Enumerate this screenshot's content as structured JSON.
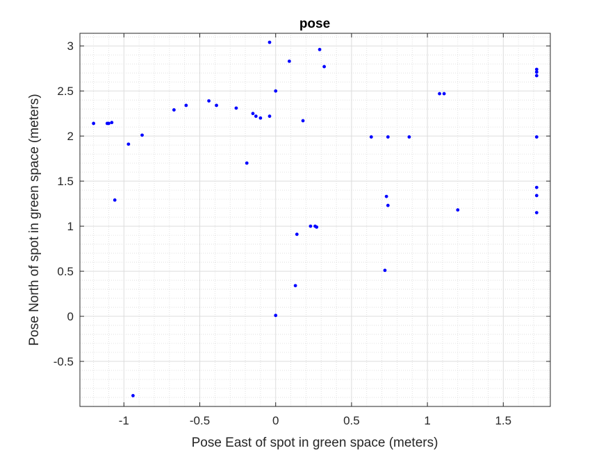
{
  "chart_data": {
    "type": "scatter",
    "title": "pose",
    "xlabel": "Pose East of spot in green space (meters)",
    "ylabel": "Pose North of spot in green space (meters)",
    "xlim": [
      -1.29,
      1.81
    ],
    "ylim": [
      -1.0,
      3.14
    ],
    "xticks": [
      -1,
      -0.5,
      0,
      0.5,
      1,
      1.5
    ],
    "xtick_labels": [
      "-1",
      "-0.5",
      "0",
      "0.5",
      "1",
      "1.5"
    ],
    "yticks": [
      -0.5,
      0,
      0.5,
      1,
      1.5,
      2,
      2.5,
      3
    ],
    "ytick_labels": [
      "-0.5",
      "0",
      "0.5",
      "1",
      "1.5",
      "2",
      "2.5",
      "3"
    ],
    "grid": true,
    "minor_grid": true,
    "marker_color": "#0000ff",
    "points": [
      {
        "x": -1.2,
        "y": 2.14
      },
      {
        "x": -1.11,
        "y": 2.14
      },
      {
        "x": -1.1,
        "y": 2.14
      },
      {
        "x": -1.08,
        "y": 2.15
      },
      {
        "x": -1.06,
        "y": 1.29
      },
      {
        "x": -0.88,
        "y": 2.01
      },
      {
        "x": -0.97,
        "y": 1.91
      },
      {
        "x": -0.94,
        "y": -0.88
      },
      {
        "x": -0.67,
        "y": 2.29
      },
      {
        "x": -0.59,
        "y": 2.34
      },
      {
        "x": -0.44,
        "y": 2.39
      },
      {
        "x": -0.39,
        "y": 2.34
      },
      {
        "x": -0.26,
        "y": 2.31
      },
      {
        "x": -0.19,
        "y": 1.7
      },
      {
        "x": -0.15,
        "y": 2.25
      },
      {
        "x": -0.13,
        "y": 2.22
      },
      {
        "x": -0.1,
        "y": 2.2
      },
      {
        "x": -0.04,
        "y": 2.22
      },
      {
        "x": -0.04,
        "y": 3.04
      },
      {
        "x": 0.0,
        "y": 2.5
      },
      {
        "x": 0.0,
        "y": 0.01
      },
      {
        "x": 0.09,
        "y": 2.83
      },
      {
        "x": 0.13,
        "y": 0.34
      },
      {
        "x": 0.14,
        "y": 0.91
      },
      {
        "x": 0.18,
        "y": 2.17
      },
      {
        "x": 0.23,
        "y": 1.0
      },
      {
        "x": 0.26,
        "y": 1.0
      },
      {
        "x": 0.27,
        "y": 0.99
      },
      {
        "x": 0.29,
        "y": 2.96
      },
      {
        "x": 0.32,
        "y": 2.77
      },
      {
        "x": 0.63,
        "y": 1.99
      },
      {
        "x": 0.72,
        "y": 0.51
      },
      {
        "x": 0.73,
        "y": 1.33
      },
      {
        "x": 0.74,
        "y": 1.23
      },
      {
        "x": 0.74,
        "y": 1.99
      },
      {
        "x": 0.88,
        "y": 1.99
      },
      {
        "x": 1.08,
        "y": 2.47
      },
      {
        "x": 1.11,
        "y": 2.47
      },
      {
        "x": 1.2,
        "y": 1.18
      },
      {
        "x": 1.72,
        "y": 2.74
      },
      {
        "x": 1.72,
        "y": 2.71
      },
      {
        "x": 1.72,
        "y": 2.67
      },
      {
        "x": 1.72,
        "y": 1.99
      },
      {
        "x": 1.72,
        "y": 1.43
      },
      {
        "x": 1.72,
        "y": 1.34
      },
      {
        "x": 1.72,
        "y": 1.15
      }
    ]
  }
}
